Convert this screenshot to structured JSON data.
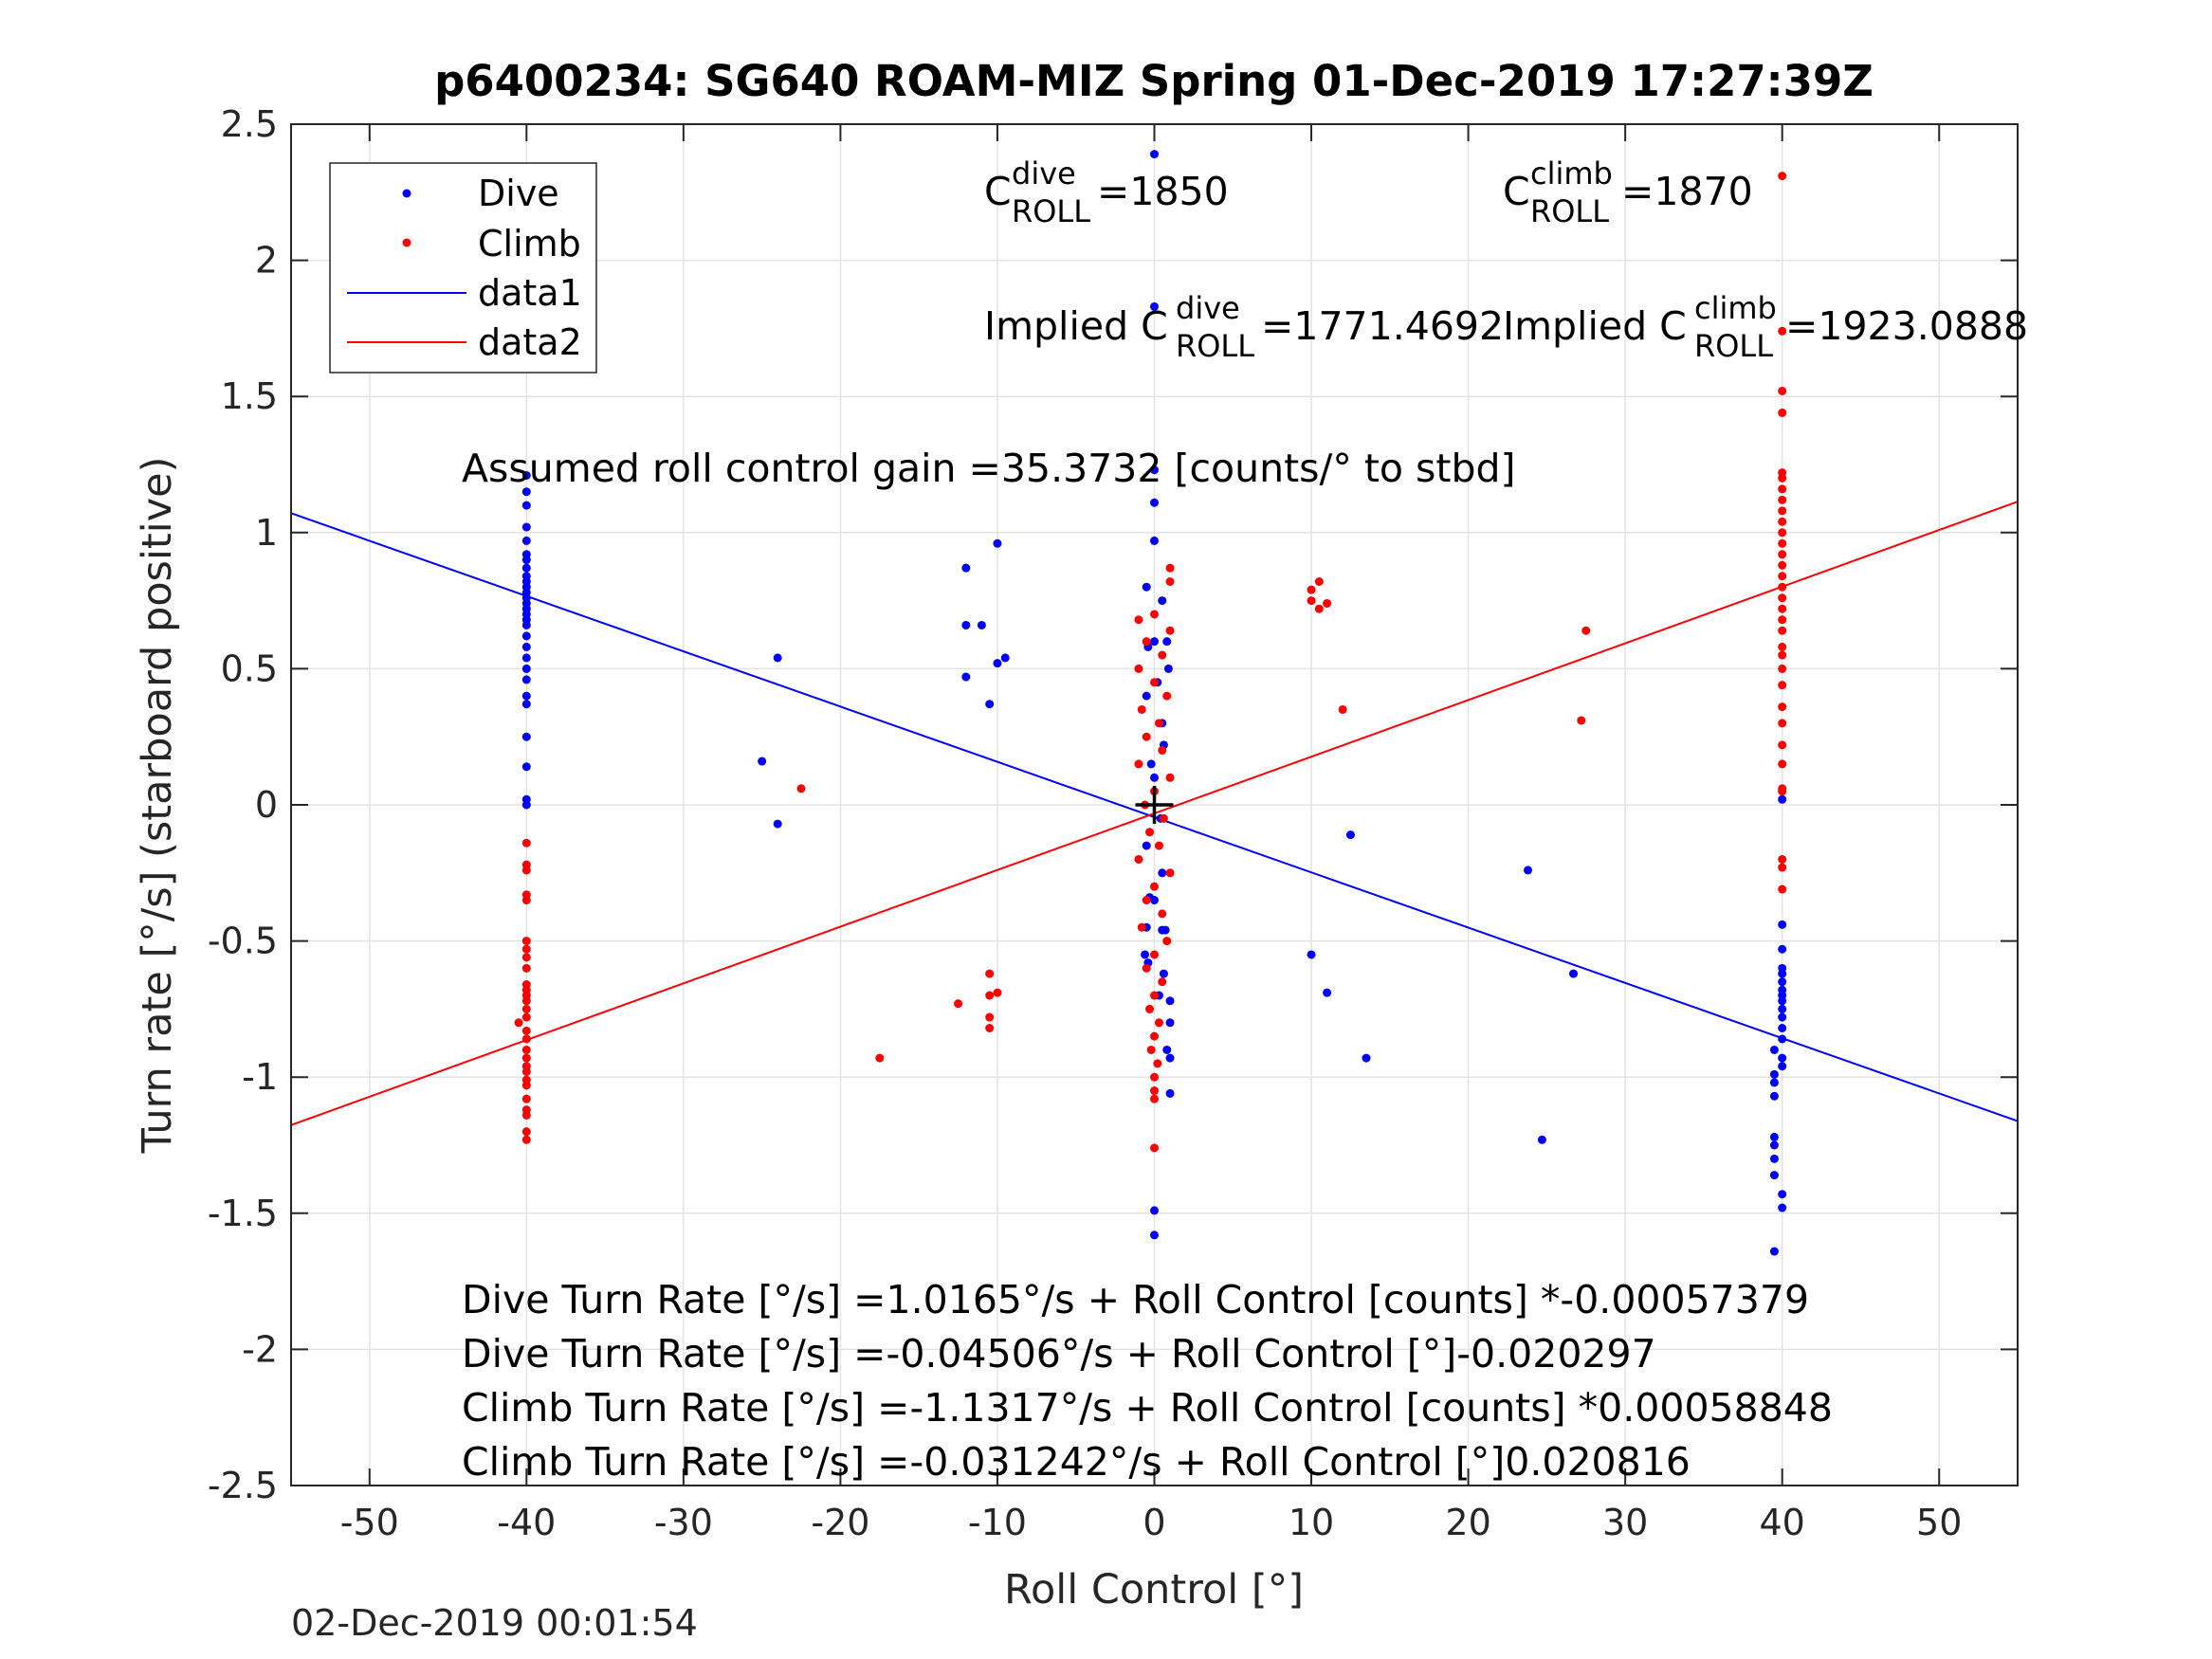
{
  "chart_data": {
    "type": "scatter",
    "title": "p6400234: SG640 ROAM-MIZ Spring 01-Dec-2019 17:27:39Z",
    "xlabel": "Roll Control [°]",
    "ylabel": "Turn rate [°/s] (starboard positive)",
    "xlim": [
      -55,
      55
    ],
    "ylim": [
      -2.5,
      2.5
    ],
    "xticks": [
      -50,
      -40,
      -30,
      -20,
      -10,
      0,
      10,
      20,
      30,
      40,
      50
    ],
    "xtick_labels": [
      "-50",
      "-40",
      "-30",
      "-20",
      "-10",
      "0",
      "10",
      "20",
      "30",
      "40",
      "50"
    ],
    "yticks": [
      -2.5,
      -2,
      -1.5,
      -1,
      -0.5,
      0,
      0.5,
      1,
      1.5,
      2,
      2.5
    ],
    "ytick_labels": [
      "-2.5",
      "-2",
      "-1.5",
      "-1",
      "-0.5",
      "0",
      "0.5",
      "1",
      "1.5",
      "2",
      "2.5"
    ],
    "grid": true,
    "legend_position": "top-left",
    "legend": [
      "Dive",
      "Climb",
      "data1",
      "data2"
    ],
    "colors": {
      "dive": "#0000ff",
      "climb": "#ff0000"
    },
    "series": [
      {
        "name": "Dive",
        "style": "markers",
        "color": "#0000ff",
        "points": [
          [
            -40,
            1.21
          ],
          [
            -40,
            1.15
          ],
          [
            -40,
            1.1
          ],
          [
            -40,
            1.02
          ],
          [
            -40,
            0.97
          ],
          [
            -40,
            0.92
          ],
          [
            -40,
            0.9
          ],
          [
            -40,
            0.87
          ],
          [
            -40,
            0.84
          ],
          [
            -40,
            0.82
          ],
          [
            -40,
            0.8
          ],
          [
            -40,
            0.78
          ],
          [
            -40,
            0.76
          ],
          [
            -40,
            0.74
          ],
          [
            -40,
            0.72
          ],
          [
            -40,
            0.7
          ],
          [
            -40,
            0.68
          ],
          [
            -40,
            0.66
          ],
          [
            -40,
            0.62
          ],
          [
            -40,
            0.58
          ],
          [
            -40,
            0.54
          ],
          [
            -40,
            0.5
          ],
          [
            -40,
            0.46
          ],
          [
            -40,
            0.4
          ],
          [
            -40,
            0.37
          ],
          [
            -40,
            0.25
          ],
          [
            -40,
            0.14
          ],
          [
            -40,
            0.02
          ],
          [
            -40,
            0.0
          ],
          [
            -24,
            0.54
          ],
          [
            -25,
            0.16
          ],
          [
            -24,
            -0.07
          ],
          [
            -12,
            0.87
          ],
          [
            -12,
            0.66
          ],
          [
            -12,
            0.47
          ],
          [
            -11,
            0.66
          ],
          [
            -10,
            0.96
          ],
          [
            -10,
            0.52
          ],
          [
            -9.5,
            0.54
          ],
          [
            -10.5,
            0.37
          ],
          [
            0,
            2.39
          ],
          [
            0,
            1.83
          ],
          [
            0,
            1.23
          ],
          [
            0,
            1.11
          ],
          [
            0,
            0.97
          ],
          [
            -0.5,
            0.8
          ],
          [
            0.5,
            0.75
          ],
          [
            0,
            0.6
          ],
          [
            -0.5,
            0.4
          ],
          [
            0.5,
            0.3
          ],
          [
            0,
            0.1
          ],
          [
            -0.5,
            -0.15
          ],
          [
            0.5,
            -0.25
          ],
          [
            0,
            -0.35
          ],
          [
            -0.5,
            -0.45
          ],
          [
            0.5,
            -0.46
          ],
          [
            -0.6,
            -0.55
          ],
          [
            -0.4,
            -0.58
          ],
          [
            0.6,
            -0.62
          ],
          [
            0.3,
            -0.7
          ],
          [
            1,
            -0.72
          ],
          [
            1,
            -0.8
          ],
          [
            0.8,
            -0.9
          ],
          [
            1,
            -0.93
          ],
          [
            1,
            -1.06
          ],
          [
            0,
            -1.49
          ],
          [
            0,
            -1.58
          ],
          [
            0.8,
            0.6
          ],
          [
            0.9,
            0.5
          ],
          [
            -0.4,
            0.58
          ],
          [
            0.2,
            0.45
          ],
          [
            0.6,
            0.22
          ],
          [
            -0.2,
            0.15
          ],
          [
            0.4,
            -0.05
          ],
          [
            -0.3,
            -0.34
          ],
          [
            0.7,
            -0.46
          ],
          [
            12.5,
            -0.11
          ],
          [
            10,
            -0.55
          ],
          [
            11,
            -0.69
          ],
          [
            13.5,
            -0.93
          ],
          [
            23.8,
            -0.24
          ],
          [
            26.7,
            -0.62
          ],
          [
            24.7,
            -1.23
          ],
          [
            40,
            0.02
          ],
          [
            40,
            -0.44
          ],
          [
            40,
            -0.53
          ],
          [
            40,
            -0.6
          ],
          [
            40,
            -0.62
          ],
          [
            40,
            -0.65
          ],
          [
            40,
            -0.68
          ],
          [
            40,
            -0.7
          ],
          [
            40,
            -0.72
          ],
          [
            40,
            -0.75
          ],
          [
            40,
            -0.78
          ],
          [
            40,
            -0.82
          ],
          [
            40,
            -0.86
          ],
          [
            39.5,
            -0.9
          ],
          [
            40,
            -0.93
          ],
          [
            40,
            -0.96
          ],
          [
            39.5,
            -0.99
          ],
          [
            39.5,
            -1.02
          ],
          [
            39.5,
            -1.07
          ],
          [
            39.5,
            -1.22
          ],
          [
            39.5,
            -1.25
          ],
          [
            39.5,
            -1.3
          ],
          [
            39.5,
            -1.36
          ],
          [
            40,
            -1.43
          ],
          [
            40,
            -1.48
          ],
          [
            39.5,
            -1.64
          ]
        ]
      },
      {
        "name": "Climb",
        "style": "markers",
        "color": "#ff0000",
        "points": [
          [
            -40,
            -0.14
          ],
          [
            -40,
            -0.22
          ],
          [
            -40,
            -0.24
          ],
          [
            -40,
            -0.33
          ],
          [
            -40,
            -0.35
          ],
          [
            -40,
            -0.5
          ],
          [
            -40,
            -0.53
          ],
          [
            -40,
            -0.56
          ],
          [
            -40,
            -0.6
          ],
          [
            -40,
            -0.66
          ],
          [
            -40,
            -0.68
          ],
          [
            -40,
            -0.7
          ],
          [
            -40,
            -0.72
          ],
          [
            -40,
            -0.75
          ],
          [
            -40,
            -0.78
          ],
          [
            -40.5,
            -0.8
          ],
          [
            -40,
            -0.83
          ],
          [
            -40,
            -0.86
          ],
          [
            -40,
            -0.9
          ],
          [
            -40,
            -0.93
          ],
          [
            -40,
            -0.96
          ],
          [
            -40,
            -0.98
          ],
          [
            -40,
            -1.01
          ],
          [
            -40,
            -1.03
          ],
          [
            -40,
            -1.08
          ],
          [
            -40,
            -1.12
          ],
          [
            -40,
            -1.14
          ],
          [
            -40,
            -1.2
          ],
          [
            -40,
            -1.23
          ],
          [
            -22.5,
            0.06
          ],
          [
            -17.5,
            -0.93
          ],
          [
            -12.5,
            -0.73
          ],
          [
            -10.5,
            -0.62
          ],
          [
            -10.5,
            -0.7
          ],
          [
            -10,
            -0.69
          ],
          [
            -10.5,
            -0.78
          ],
          [
            -10.5,
            -0.82
          ],
          [
            1,
            0.87
          ],
          [
            1,
            0.82
          ],
          [
            0,
            0.7
          ],
          [
            -1,
            0.68
          ],
          [
            1,
            0.64
          ],
          [
            -0.5,
            0.6
          ],
          [
            0.5,
            0.55
          ],
          [
            -1,
            0.5
          ],
          [
            0,
            0.45
          ],
          [
            0.8,
            0.4
          ],
          [
            -0.8,
            0.35
          ],
          [
            0.3,
            0.3
          ],
          [
            -0.5,
            0.25
          ],
          [
            0.5,
            0.2
          ],
          [
            -1,
            0.15
          ],
          [
            1,
            0.1
          ],
          [
            0,
            0.05
          ],
          [
            -0.6,
            0.0
          ],
          [
            0.6,
            -0.05
          ],
          [
            -0.3,
            -0.1
          ],
          [
            0.3,
            -0.15
          ],
          [
            -1,
            -0.2
          ],
          [
            1,
            -0.25
          ],
          [
            0,
            -0.3
          ],
          [
            -0.5,
            -0.35
          ],
          [
            0.5,
            -0.4
          ],
          [
            -0.8,
            -0.45
          ],
          [
            0.8,
            -0.5
          ],
          [
            0,
            -0.55
          ],
          [
            -0.5,
            -0.6
          ],
          [
            0.5,
            -0.65
          ],
          [
            0,
            -0.7
          ],
          [
            -0.3,
            -0.75
          ],
          [
            0.3,
            -0.8
          ],
          [
            0,
            -0.85
          ],
          [
            -0.2,
            -0.9
          ],
          [
            0.2,
            -0.95
          ],
          [
            0,
            -1.0
          ],
          [
            0,
            -1.05
          ],
          [
            0,
            -1.08
          ],
          [
            0,
            -1.26
          ],
          [
            10,
            0.79
          ],
          [
            10.5,
            0.82
          ],
          [
            10,
            0.75
          ],
          [
            11,
            0.74
          ],
          [
            10.5,
            0.72
          ],
          [
            12,
            0.35
          ],
          [
            27.5,
            0.64
          ],
          [
            27.2,
            0.31
          ],
          [
            40,
            1.52
          ],
          [
            40,
            1.44
          ],
          [
            40,
            1.22
          ],
          [
            40,
            1.2
          ],
          [
            40,
            1.16
          ],
          [
            40,
            1.12
          ],
          [
            40,
            1.08
          ],
          [
            40,
            1.04
          ],
          [
            40,
            1.0
          ],
          [
            40,
            0.96
          ],
          [
            40,
            0.92
          ],
          [
            40,
            0.88
          ],
          [
            40,
            0.84
          ],
          [
            40,
            0.8
          ],
          [
            40,
            0.76
          ],
          [
            40,
            0.72
          ],
          [
            40,
            0.68
          ],
          [
            40,
            0.64
          ],
          [
            40,
            0.58
          ],
          [
            40,
            0.55
          ],
          [
            40,
            0.5
          ],
          [
            40,
            0.44
          ],
          [
            40,
            0.36
          ],
          [
            40,
            0.3
          ],
          [
            40,
            0.22
          ],
          [
            40,
            0.15
          ],
          [
            40,
            0.06
          ],
          [
            40,
            0.05
          ],
          [
            40,
            -0.2
          ],
          [
            40,
            -0.23
          ],
          [
            40,
            -0.31
          ],
          [
            40,
            2.31
          ],
          [
            40,
            1.74
          ]
        ]
      },
      {
        "name": "data1",
        "style": "line",
        "color": "#0000ff",
        "x": [
          -55,
          55
        ],
        "y": [
          1.0713,
          -1.1614
        ]
      },
      {
        "name": "data2",
        "style": "line",
        "color": "#ff0000",
        "x": [
          -55,
          55
        ],
        "y": [
          -1.1761,
          1.1136
        ]
      }
    ],
    "marker": {
      "x": 0,
      "y": 0,
      "symbol": "+",
      "color": "#000000"
    },
    "annotations": {
      "c_dive": {
        "prefix": "C",
        "sup": "dive",
        "sub": "ROLL",
        "value": " =1850"
      },
      "c_climb": {
        "prefix": "C",
        "sup": "climb",
        "sub": "ROLL",
        "value": " =1870"
      },
      "implied_dive": {
        "prefix": "Implied C",
        "sup": "dive",
        "sub": "ROLL",
        "value": " =1771.4692"
      },
      "implied_climb": {
        "prefix": "Implied C",
        "sup": "climb",
        "sub": "ROLL",
        "value": " =1923.0888"
      },
      "gain": "Assumed roll control gain =35.3732 [counts/° to stbd]",
      "fits": [
        "Dive Turn Rate [°/s] =1.0165°/s + Roll Control [counts] *-0.00057379",
        "Dive Turn Rate [°/s] =-0.04506°/s + Roll Control [°]-0.020297",
        "Climb Turn Rate [°/s] =-1.1317°/s + Roll Control [counts] *0.00058848",
        "Climb Turn Rate [°/s] =-0.031242°/s + Roll Control [°]0.020816"
      ]
    },
    "timestamp": "02-Dec-2019 00:01:54"
  }
}
